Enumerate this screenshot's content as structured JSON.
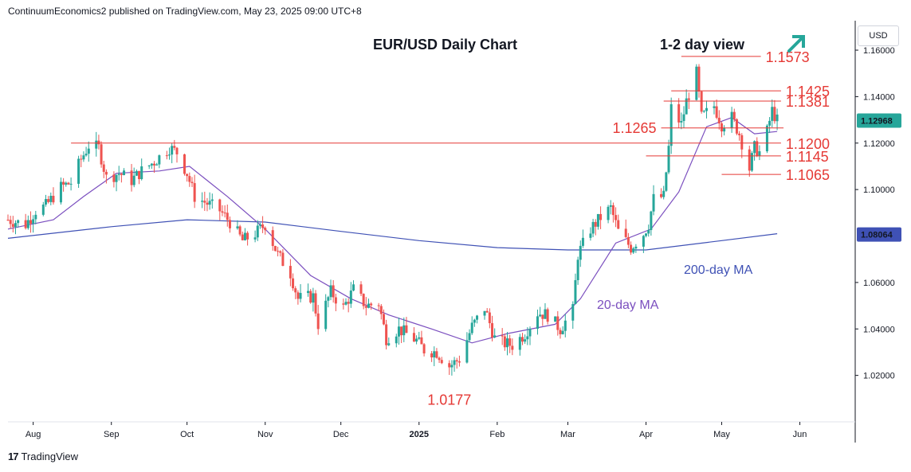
{
  "header": {
    "text": "ContinuumEconomics2 published on TradingView.com, May 23, 2025 09:00 UTC+8"
  },
  "footer": {
    "brand": "TradingView",
    "logo_text": "17"
  },
  "currency": "USD",
  "colors": {
    "up": "#26a69a",
    "down": "#ef5350",
    "level": "#e53935",
    "ma20": "#7b4fbf",
    "ma200": "#3f51b5",
    "arrow": "#26a69a"
  },
  "chart_data": {
    "type": "candlestick",
    "title": "EUR/USD Daily Chart",
    "subtitle": "1-2 day view",
    "view_icon": "arrow-up-right-icon",
    "y_ticks": [
      "1.16000",
      "1.14000",
      "1.12000",
      "1.10000",
      "1.06000",
      "1.04000",
      "1.02000"
    ],
    "ylim": [
      1.0,
      1.172
    ],
    "price_badges": [
      {
        "text": "1.12968",
        "value": 1.12968,
        "color": "#26a69a"
      },
      {
        "text": "1.08064",
        "value": 1.08064,
        "color": "#3f51b5"
      }
    ],
    "x_ticks": [
      {
        "label": "Aug",
        "date": "2024-08-01"
      },
      {
        "label": "Sep",
        "date": "2024-09-01"
      },
      {
        "label": "Oct",
        "date": "2024-10-01"
      },
      {
        "label": "Nov",
        "date": "2024-11-01"
      },
      {
        "label": "Dec",
        "date": "2024-12-01"
      },
      {
        "label": "2025",
        "date": "2025-01-01"
      },
      {
        "label": "Feb",
        "date": "2025-02-01"
      },
      {
        "label": "Mar",
        "date": "2025-03-01"
      },
      {
        "label": "Apr",
        "date": "2025-04-01"
      },
      {
        "label": "May",
        "date": "2025-05-01"
      },
      {
        "label": "Jun",
        "date": "2025-06-01"
      }
    ],
    "levels": [
      {
        "text": "1.1573",
        "value": 1.1573,
        "from": "2025-04-15",
        "to": "2025-05-14",
        "label_side": "right"
      },
      {
        "text": "1.1425",
        "value": 1.1425,
        "from": "2025-04-11",
        "to": "2025-05-22",
        "label_side": "right"
      },
      {
        "text": "1.1381",
        "value": 1.1381,
        "from": "2025-04-08",
        "to": "2025-05-22",
        "label_side": "right"
      },
      {
        "text": "1.1265",
        "value": 1.1265,
        "from": "2025-04-07",
        "to": "2025-05-23",
        "label_side": "left"
      },
      {
        "text": "1.1200",
        "value": 1.12,
        "from": "2024-08-16",
        "to": "2025-05-22",
        "label_side": "right"
      },
      {
        "text": "1.1145",
        "value": 1.1145,
        "from": "2025-04-01",
        "to": "2025-05-22",
        "label_side": "right"
      },
      {
        "text": "1.1065",
        "value": 1.1065,
        "from": "2025-05-01",
        "to": "2025-05-22",
        "label_side": "right"
      },
      {
        "text": "1.0177",
        "value": 1.0177,
        "from": "2025-01-13",
        "to": "2025-01-13",
        "label_side": "below"
      }
    ],
    "ma_labels": [
      {
        "text": "20-day MA",
        "color": "#7b4fbf"
      },
      {
        "text": "200-day MA",
        "color": "#3f51b5"
      }
    ],
    "close_series": [
      [
        "2024-07-22",
        1.087
      ],
      [
        "2024-07-29",
        1.085
      ],
      [
        "2024-08-02",
        1.091
      ],
      [
        "2024-08-06",
        1.093
      ],
      [
        "2024-08-12",
        1.101
      ],
      [
        "2024-08-16",
        1.103
      ],
      [
        "2024-08-20",
        1.113
      ],
      [
        "2024-08-23",
        1.119
      ],
      [
        "2024-08-27",
        1.118
      ],
      [
        "2024-08-30",
        1.105
      ],
      [
        "2024-09-04",
        1.107
      ],
      [
        "2024-09-09",
        1.104
      ],
      [
        "2024-09-13",
        1.108
      ],
      [
        "2024-09-18",
        1.112
      ],
      [
        "2024-09-24",
        1.118
      ],
      [
        "2024-09-27",
        1.116
      ],
      [
        "2024-10-01",
        1.107
      ],
      [
        "2024-10-04",
        1.097
      ],
      [
        "2024-10-09",
        1.094
      ],
      [
        "2024-10-14",
        1.091
      ],
      [
        "2024-10-18",
        1.086
      ],
      [
        "2024-10-23",
        1.078
      ],
      [
        "2024-10-28",
        1.081
      ],
      [
        "2024-11-01",
        1.085
      ],
      [
        "2024-11-06",
        1.072
      ],
      [
        "2024-11-11",
        1.064
      ],
      [
        "2024-11-14",
        1.053
      ],
      [
        "2024-11-20",
        1.054
      ],
      [
        "2024-11-22",
        1.042
      ],
      [
        "2024-11-27",
        1.056
      ],
      [
        "2024-12-02",
        1.049
      ],
      [
        "2024-12-06",
        1.057
      ],
      [
        "2024-12-11",
        1.05
      ],
      [
        "2024-12-16",
        1.051
      ],
      [
        "2024-12-19",
        1.036
      ],
      [
        "2024-12-24",
        1.04
      ],
      [
        "2024-12-31",
        1.035
      ],
      [
        "2025-01-03",
        1.031
      ],
      [
        "2025-01-08",
        1.03
      ],
      [
        "2025-01-13",
        1.024
      ],
      [
        "2025-01-17",
        1.027
      ],
      [
        "2025-01-22",
        1.041
      ],
      [
        "2025-01-27",
        1.049
      ],
      [
        "2025-01-31",
        1.036
      ],
      [
        "2025-02-03",
        1.034
      ],
      [
        "2025-02-07",
        1.033
      ],
      [
        "2025-02-12",
        1.038
      ],
      [
        "2025-02-17",
        1.047
      ],
      [
        "2025-02-21",
        1.046
      ],
      [
        "2025-02-26",
        1.04
      ],
      [
        "2025-03-03",
        1.048
      ],
      [
        "2025-03-05",
        1.072
      ],
      [
        "2025-03-10",
        1.083
      ],
      [
        "2025-03-14",
        1.088
      ],
      [
        "2025-03-18",
        1.092
      ],
      [
        "2025-03-21",
        1.082
      ],
      [
        "2025-03-26",
        1.075
      ],
      [
        "2025-03-31",
        1.081
      ],
      [
        "2025-04-02",
        1.085
      ],
      [
        "2025-04-04",
        1.096
      ],
      [
        "2025-04-08",
        1.097
      ],
      [
        "2025-04-10",
        1.118
      ],
      [
        "2025-04-11",
        1.135
      ],
      [
        "2025-04-15",
        1.128
      ],
      [
        "2025-04-17",
        1.138
      ],
      [
        "2025-04-21",
        1.15
      ],
      [
        "2025-04-23",
        1.131
      ],
      [
        "2025-04-28",
        1.136
      ],
      [
        "2025-05-01",
        1.128
      ],
      [
        "2025-05-05",
        1.131
      ],
      [
        "2025-05-08",
        1.124
      ],
      [
        "2025-05-12",
        1.109
      ],
      [
        "2025-05-14",
        1.118
      ],
      [
        "2025-05-16",
        1.116
      ],
      [
        "2025-05-19",
        1.125
      ],
      [
        "2025-05-21",
        1.134
      ],
      [
        "2025-05-23",
        1.1297
      ]
    ],
    "ma20": [
      [
        "2024-07-22",
        1.083
      ],
      [
        "2024-08-09",
        1.087
      ],
      [
        "2024-08-21",
        1.097
      ],
      [
        "2024-09-03",
        1.107
      ],
      [
        "2024-09-20",
        1.108
      ],
      [
        "2024-10-02",
        1.11
      ],
      [
        "2024-10-17",
        1.097
      ],
      [
        "2024-11-01",
        1.083
      ],
      [
        "2024-11-19",
        1.063
      ],
      [
        "2024-12-05",
        1.053
      ],
      [
        "2024-12-20",
        1.046
      ],
      [
        "2025-01-06",
        1.04
      ],
      [
        "2025-01-22",
        1.034
      ],
      [
        "2025-02-05",
        1.038
      ],
      [
        "2025-02-24",
        1.042
      ],
      [
        "2025-03-06",
        1.053
      ],
      [
        "2025-03-20",
        1.077
      ],
      [
        "2025-04-03",
        1.083
      ],
      [
        "2025-04-14",
        1.099
      ],
      [
        "2025-04-25",
        1.127
      ],
      [
        "2025-05-05",
        1.131
      ],
      [
        "2025-05-14",
        1.124
      ],
      [
        "2025-05-23",
        1.125
      ]
    ],
    "ma200": [
      [
        "2024-07-22",
        1.079
      ],
      [
        "2024-09-01",
        1.084
      ],
      [
        "2024-10-01",
        1.087
      ],
      [
        "2024-11-01",
        1.086
      ],
      [
        "2024-12-01",
        1.082
      ],
      [
        "2025-01-01",
        1.078
      ],
      [
        "2025-02-01",
        1.075
      ],
      [
        "2025-03-01",
        1.074
      ],
      [
        "2025-04-01",
        1.074
      ],
      [
        "2025-05-01",
        1.078
      ],
      [
        "2025-05-23",
        1.081
      ]
    ]
  }
}
